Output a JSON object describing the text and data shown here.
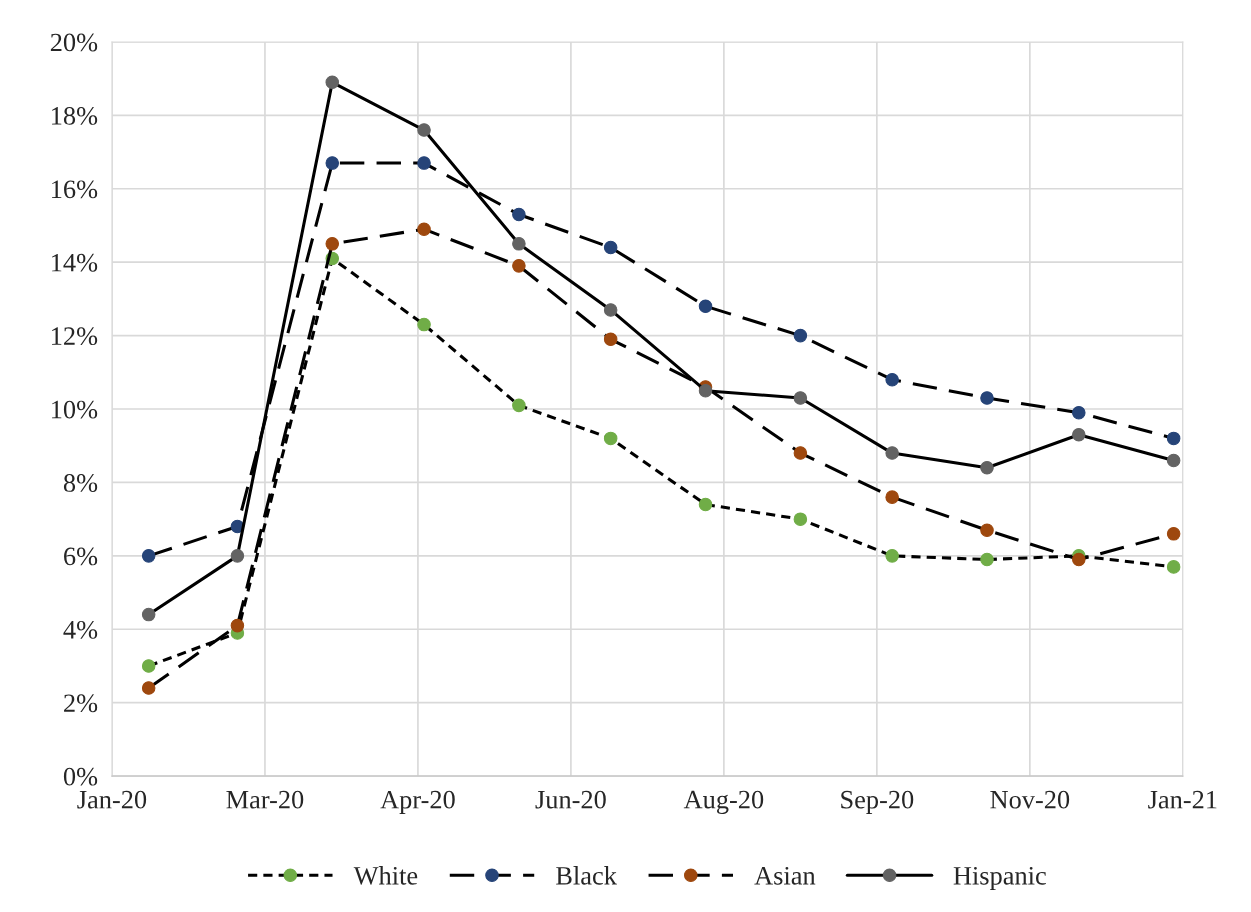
{
  "chart_data": {
    "type": "line",
    "x": [
      "2020-01-31",
      "2020-02-29",
      "2020-03-31",
      "2020-04-30",
      "2020-05-31",
      "2020-06-30",
      "2020-07-31",
      "2020-08-31",
      "2020-09-30",
      "2020-10-31",
      "2020-11-30",
      "2020-12-31"
    ],
    "series": [
      {
        "name": "White",
        "color": "#70ad47",
        "line_style": "dotted",
        "values": [
          3.0,
          3.9,
          14.1,
          12.3,
          10.1,
          9.2,
          7.4,
          7.0,
          6.0,
          5.9,
          6.0,
          5.7
        ]
      },
      {
        "name": "Black",
        "color": "#264478",
        "line_style": "dashed",
        "values": [
          6.0,
          6.8,
          16.7,
          16.7,
          15.3,
          14.4,
          12.8,
          12.0,
          10.8,
          10.3,
          9.9,
          9.2
        ]
      },
      {
        "name": "Asian",
        "color": "#9e480e",
        "line_style": "dashed",
        "values": [
          2.4,
          4.1,
          14.5,
          14.9,
          13.9,
          11.9,
          10.6,
          8.8,
          7.6,
          6.7,
          5.9,
          6.6
        ]
      },
      {
        "name": "Hispanic",
        "color": "#636363",
        "line_style": "solid",
        "values": [
          4.4,
          6.0,
          18.9,
          17.6,
          14.5,
          12.7,
          10.5,
          10.3,
          8.8,
          8.4,
          9.3,
          8.6
        ]
      }
    ],
    "xlim": [
      "2020-01-19",
      "2021-01-03"
    ],
    "xticks": [
      {
        "value": "2020-01-19",
        "label": "Jan-20"
      },
      {
        "value": "2020-03-09",
        "label": "Mar-20"
      },
      {
        "value": "2020-04-28",
        "label": "Apr-20"
      },
      {
        "value": "2020-06-17",
        "label": "Jun-20"
      },
      {
        "value": "2020-08-06",
        "label": "Aug-20"
      },
      {
        "value": "2020-09-25",
        "label": "Sep-20"
      },
      {
        "value": "2020-11-14",
        "label": "Nov-20"
      },
      {
        "value": "2021-01-03",
        "label": "Jan-21"
      }
    ],
    "ylim": [
      0,
      20
    ],
    "yticks": [
      {
        "value": 0,
        "label": "0%"
      },
      {
        "value": 2,
        "label": "2%"
      },
      {
        "value": 4,
        "label": "4%"
      },
      {
        "value": 6,
        "label": "6%"
      },
      {
        "value": 8,
        "label": "8%"
      },
      {
        "value": 10,
        "label": "10%"
      },
      {
        "value": 12,
        "label": "12%"
      },
      {
        "value": 14,
        "label": "14%"
      },
      {
        "value": 16,
        "label": "16%"
      },
      {
        "value": 18,
        "label": "18%"
      },
      {
        "value": 20,
        "label": "20%"
      }
    ],
    "grid": true,
    "legend": "bottom",
    "marker": "circle"
  }
}
